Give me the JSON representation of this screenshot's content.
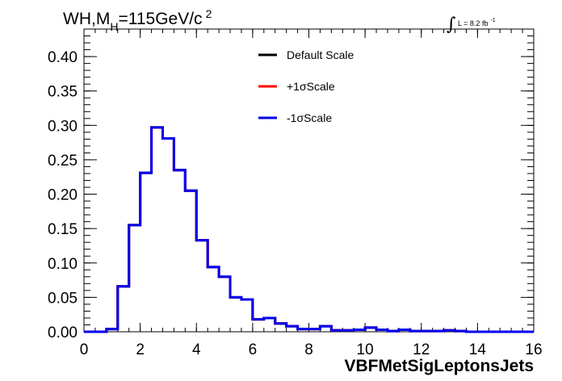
{
  "chart_data": {
    "type": "step",
    "title": "WH,M",
    "title_sub": "H",
    "title_rest": "=115GeV/c",
    "title_sup": "2",
    "lumi_label": "L = 8.2 fb",
    "lumi_sup": "-1",
    "xlabel": "VBFMetSigLeptonsJets",
    "ylabel": "",
    "xlim": [
      0,
      16
    ],
    "ylim": [
      0,
      0.44
    ],
    "xticks": [
      "0",
      "2",
      "4",
      "6",
      "8",
      "10",
      "12",
      "14",
      "16"
    ],
    "yticks": [
      "0.00",
      "0.05",
      "0.10",
      "0.15",
      "0.20",
      "0.25",
      "0.30",
      "0.35",
      "0.40"
    ],
    "legend_position": "top-right",
    "bin_width": 0.4,
    "bin_start": 0,
    "series": [
      {
        "name": "Default Scale",
        "color": "#000000",
        "values": [
          0,
          0,
          0.004,
          0.066,
          0.155,
          0.231,
          0.297,
          0.281,
          0.235,
          0.205,
          0.133,
          0.094,
          0.08,
          0.05,
          0.047,
          0.018,
          0.02,
          0.012,
          0.008,
          0.004,
          0.004,
          0.008,
          0.002,
          0.002,
          0.003,
          0.006,
          0.003,
          0.001,
          0.003,
          0.001,
          0.001,
          0.001,
          0.002,
          0.001,
          0,
          0,
          0,
          0,
          0,
          0
        ]
      },
      {
        "name": "+1σScale",
        "color": "#ff0000",
        "values": [
          0,
          0,
          0.004,
          0.066,
          0.155,
          0.231,
          0.297,
          0.281,
          0.235,
          0.205,
          0.133,
          0.094,
          0.08,
          0.05,
          0.047,
          0.018,
          0.02,
          0.012,
          0.008,
          0.004,
          0.004,
          0.008,
          0.002,
          0.002,
          0.003,
          0.006,
          0.003,
          0.001,
          0.003,
          0.001,
          0.001,
          0.001,
          0.002,
          0.001,
          0,
          0,
          0,
          0,
          0,
          0
        ]
      },
      {
        "name": "-1σScale",
        "color": "#0000ee",
        "values": [
          0,
          0,
          0.004,
          0.066,
          0.155,
          0.231,
          0.297,
          0.281,
          0.235,
          0.205,
          0.133,
          0.094,
          0.08,
          0.05,
          0.047,
          0.018,
          0.02,
          0.012,
          0.008,
          0.004,
          0.004,
          0.008,
          0.002,
          0.002,
          0.003,
          0.006,
          0.003,
          0.001,
          0.003,
          0.001,
          0.001,
          0.001,
          0.002,
          0.001,
          0,
          0,
          0,
          0,
          0,
          0
        ]
      }
    ]
  }
}
